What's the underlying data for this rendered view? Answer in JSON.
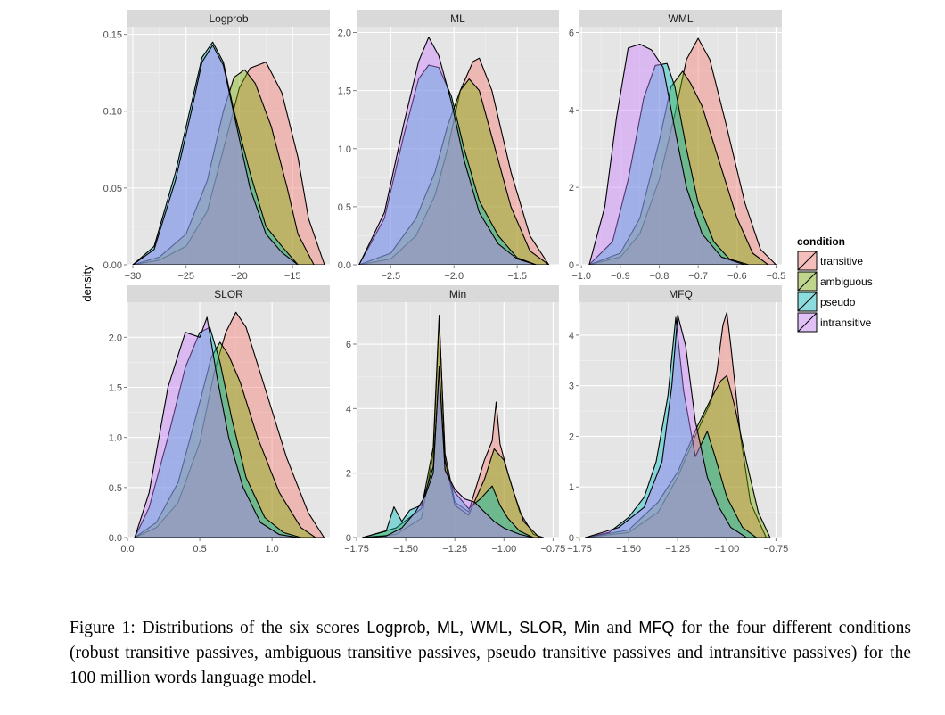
{
  "chart_data": {
    "type": "area",
    "y_label": "density",
    "legend": {
      "title": "condition",
      "position": "right",
      "items": [
        {
          "label": "transitive",
          "color": "#F8766D"
        },
        {
          "label": "ambiguous",
          "color": "#7CAE00"
        },
        {
          "label": "pseudo",
          "color": "#00BFC4"
        },
        {
          "label": "intransitive",
          "color": "#C77CFF"
        }
      ]
    },
    "panels": [
      {
        "title": "Logprob",
        "xlim": [
          -30.5,
          -11.5
        ],
        "ylim": [
          0,
          0.155
        ],
        "x_ticks": [
          -30,
          -25,
          -20,
          -15
        ],
        "x_tick_labels": [
          "−30",
          "−25",
          "−20",
          "−15"
        ],
        "y_ticks": [
          0,
          0.05,
          0.1,
          0.15
        ],
        "y_tick_labels": [
          "0.00",
          "0.05",
          "0.10",
          "0.15"
        ],
        "series": [
          {
            "name": "transitive",
            "x": [
              -30,
              -27.5,
              -25,
              -23,
              -21.5,
              -20,
              -19,
              -17.5,
              -16,
              -14.5,
              -13.5,
              -12
            ],
            "y": [
              0,
              0.003,
              0.012,
              0.035,
              0.075,
              0.115,
              0.128,
              0.132,
              0.112,
              0.07,
              0.03,
              0
            ]
          },
          {
            "name": "ambiguous",
            "x": [
              -30,
              -27.5,
              -25,
              -23,
              -21.5,
              -20.5,
              -19.5,
              -18.5,
              -17,
              -15.5,
              -14.5,
              -13
            ],
            "y": [
              0,
              0.005,
              0.02,
              0.055,
              0.1,
              0.122,
              0.127,
              0.118,
              0.09,
              0.05,
              0.02,
              0
            ]
          },
          {
            "name": "pseudo",
            "x": [
              -30,
              -28,
              -26,
              -24.5,
              -23.5,
              -22.5,
              -21.5,
              -20.5,
              -19,
              -17.5,
              -16,
              -14.5
            ],
            "y": [
              0,
              0.012,
              0.06,
              0.105,
              0.135,
              0.145,
              0.132,
              0.1,
              0.06,
              0.025,
              0.012,
              0
            ]
          },
          {
            "name": "intransitive",
            "x": [
              -30,
              -28,
              -26,
              -24.5,
              -23.5,
              -22.5,
              -21.5,
              -20.5,
              -19,
              -17.5,
              -16,
              -14.5
            ],
            "y": [
              0,
              0.01,
              0.055,
              0.1,
              0.132,
              0.143,
              0.13,
              0.098,
              0.05,
              0.02,
              0.008,
              0
            ]
          }
        ]
      },
      {
        "title": "ML",
        "xlim": [
          -2.77,
          -1.17
        ],
        "ylim": [
          0,
          2.05
        ],
        "x_ticks": [
          -2.5,
          -2.0,
          -1.5
        ],
        "x_tick_labels": [
          "−2.5",
          "−2.0",
          "−1.5"
        ],
        "y_ticks": [
          0,
          0.5,
          1.0,
          1.5,
          2.0
        ],
        "y_tick_labels": [
          "0.0",
          "0.5",
          "1.0",
          "1.5",
          "2.0"
        ],
        "series": [
          {
            "name": "transitive",
            "x": [
              -2.75,
              -2.5,
              -2.3,
              -2.15,
              -2.05,
              -1.95,
              -1.85,
              -1.8,
              -1.7,
              -1.55,
              -1.4,
              -1.25
            ],
            "y": [
              0,
              0.05,
              0.25,
              0.6,
              1.0,
              1.5,
              1.75,
              1.78,
              1.5,
              0.8,
              0.25,
              0
            ]
          },
          {
            "name": "ambiguous",
            "x": [
              -2.75,
              -2.5,
              -2.3,
              -2.15,
              -2.05,
              -1.95,
              -1.88,
              -1.8,
              -1.7,
              -1.55,
              -1.4,
              -1.25
            ],
            "y": [
              0,
              0.1,
              0.4,
              0.8,
              1.2,
              1.5,
              1.6,
              1.5,
              1.1,
              0.5,
              0.12,
              0
            ]
          },
          {
            "name": "pseudo",
            "x": [
              -2.75,
              -2.55,
              -2.4,
              -2.28,
              -2.2,
              -2.12,
              -2.02,
              -1.92,
              -1.8,
              -1.65,
              -1.5,
              -1.35
            ],
            "y": [
              0,
              0.4,
              1.1,
              1.6,
              1.72,
              1.7,
              1.45,
              1.0,
              0.55,
              0.25,
              0.06,
              0
            ]
          },
          {
            "name": "intransitive",
            "x": [
              -2.75,
              -2.55,
              -2.4,
              -2.28,
              -2.2,
              -2.12,
              -2.02,
              -1.92,
              -1.8,
              -1.65,
              -1.5,
              -1.35
            ],
            "y": [
              0,
              0.45,
              1.2,
              1.75,
              1.96,
              1.8,
              1.4,
              0.9,
              0.45,
              0.18,
              0.05,
              0
            ]
          }
        ]
      },
      {
        "title": "WML",
        "xlim": [
          -1.005,
          -0.485
        ],
        "ylim": [
          0,
          6.15
        ],
        "x_ticks": [
          -1.0,
          -0.9,
          -0.8,
          -0.7,
          -0.6,
          -0.5
        ],
        "x_tick_labels": [
          "−1.0",
          "−0.9",
          "−0.8",
          "−0.7",
          "−0.6",
          "−0.5"
        ],
        "y_ticks": [
          0,
          2,
          4,
          6
        ],
        "y_tick_labels": [
          "0",
          "2",
          "4",
          "6"
        ],
        "series": [
          {
            "name": "transitive",
            "x": [
              -0.98,
              -0.9,
              -0.85,
              -0.8,
              -0.76,
              -0.73,
              -0.7,
              -0.67,
              -0.63,
              -0.58,
              -0.54,
              -0.5
            ],
            "y": [
              0,
              0.2,
              0.8,
              2.2,
              3.9,
              5.3,
              5.85,
              5.3,
              3.7,
              1.6,
              0.4,
              0
            ]
          },
          {
            "name": "ambiguous",
            "x": [
              -0.98,
              -0.9,
              -0.85,
              -0.8,
              -0.77,
              -0.74,
              -0.72,
              -0.69,
              -0.65,
              -0.6,
              -0.56,
              -0.52
            ],
            "y": [
              0,
              0.3,
              1.2,
              3.2,
              4.6,
              5.0,
              4.7,
              4.1,
              2.8,
              1.2,
              0.3,
              0
            ]
          },
          {
            "name": "pseudo",
            "x": [
              -0.98,
              -0.92,
              -0.88,
              -0.84,
              -0.81,
              -0.78,
              -0.76,
              -0.73,
              -0.7,
              -0.66,
              -0.62,
              -0.57
            ],
            "y": [
              0,
              0.6,
              2.2,
              4.3,
              5.15,
              5.2,
              4.6,
              3.0,
              1.6,
              0.6,
              0.15,
              0
            ]
          },
          {
            "name": "intransitive",
            "x": [
              -0.98,
              -0.94,
              -0.91,
              -0.88,
              -0.85,
              -0.82,
              -0.79,
              -0.76,
              -0.73,
              -0.69,
              -0.64,
              -0.58
            ],
            "y": [
              0,
              1.5,
              3.8,
              5.6,
              5.7,
              5.55,
              5.1,
              3.5,
              2.0,
              0.8,
              0.2,
              0
            ]
          }
        ]
      },
      {
        "title": "SLOR",
        "xlim": [
          0,
          1.4
        ],
        "ylim": [
          0,
          2.35
        ],
        "x_ticks": [
          0,
          0.5,
          1.0
        ],
        "x_tick_labels": [
          "0.0",
          "0.5",
          "1.0"
        ],
        "y_ticks": [
          0,
          0.5,
          1.0,
          1.5,
          2.0
        ],
        "y_tick_labels": [
          "0.0",
          "0.5",
          "1.0",
          "1.5",
          "2.0"
        ],
        "series": [
          {
            "name": "transitive",
            "x": [
              0.05,
              0.2,
              0.35,
              0.5,
              0.6,
              0.68,
              0.75,
              0.82,
              0.95,
              1.1,
              1.25,
              1.36
            ],
            "y": [
              0,
              0.1,
              0.35,
              0.95,
              1.65,
              2.05,
              2.25,
              2.1,
              1.5,
              0.8,
              0.25,
              0
            ]
          },
          {
            "name": "ambiguous",
            "x": [
              0.05,
              0.2,
              0.35,
              0.5,
              0.58,
              0.64,
              0.7,
              0.78,
              0.9,
              1.05,
              1.2,
              1.3
            ],
            "y": [
              0,
              0.15,
              0.55,
              1.35,
              1.8,
              1.95,
              1.82,
              1.55,
              1.0,
              0.45,
              0.1,
              0
            ]
          },
          {
            "name": "pseudo",
            "x": [
              0.05,
              0.15,
              0.28,
              0.4,
              0.5,
              0.57,
              0.64,
              0.72,
              0.82,
              0.95,
              1.08,
              1.2
            ],
            "y": [
              0,
              0.3,
              1.0,
              1.7,
              2.05,
              2.1,
              1.75,
              1.2,
              0.6,
              0.2,
              0.05,
              0
            ]
          },
          {
            "name": "intransitive",
            "x": [
              0.05,
              0.15,
              0.28,
              0.4,
              0.5,
              0.55,
              0.62,
              0.7,
              0.8,
              0.92,
              1.05,
              1.18
            ],
            "y": [
              0,
              0.45,
              1.5,
              2.05,
              2.0,
              2.2,
              1.6,
              1.0,
              0.5,
              0.15,
              0.03,
              0
            ]
          }
        ]
      },
      {
        "title": "Min",
        "xlim": [
          -1.75,
          -0.72
        ],
        "ylim": [
          0,
          7.3
        ],
        "x_ticks": [
          -1.75,
          -1.5,
          -1.25,
          -1.0,
          -0.75
        ],
        "x_tick_labels": [
          "−1.75",
          "−1.50",
          "−1.25",
          "−1.00",
          "−0.75"
        ],
        "y_ticks": [
          0,
          2,
          4,
          6
        ],
        "y_tick_labels": [
          "0",
          "2",
          "4",
          "6"
        ],
        "series": [
          {
            "name": "transitive",
            "x": [
              -1.72,
              -1.55,
              -1.42,
              -1.36,
              -1.33,
              -1.3,
              -1.25,
              -1.18,
              -1.1,
              -1.06,
              -1.04,
              -1.02,
              -0.98,
              -0.92,
              -0.85,
              -0.8
            ],
            "y": [
              0,
              0.1,
              0.6,
              2.6,
              6.8,
              2.6,
              1.1,
              0.8,
              2.4,
              3.0,
              4.2,
              2.9,
              2.0,
              0.8,
              0.1,
              0
            ]
          },
          {
            "name": "ambiguous",
            "x": [
              -1.72,
              -1.55,
              -1.42,
              -1.36,
              -1.33,
              -1.3,
              -1.25,
              -1.18,
              -1.1,
              -1.05,
              -1.0,
              -0.95,
              -0.9,
              -0.82
            ],
            "y": [
              0,
              0.3,
              0.9,
              2.8,
              6.9,
              2.4,
              1.0,
              0.7,
              1.8,
              2.75,
              2.4,
              1.4,
              0.5,
              0
            ]
          },
          {
            "name": "pseudo",
            "x": [
              -1.72,
              -1.6,
              -1.56,
              -1.52,
              -1.48,
              -1.42,
              -1.36,
              -1.33,
              -1.3,
              -1.25,
              -1.18,
              -1.12,
              -1.06,
              -1.02,
              -0.98,
              -0.92,
              -0.85
            ],
            "y": [
              0,
              0.2,
              0.95,
              0.5,
              0.85,
              1.0,
              2.2,
              5.1,
              2.1,
              1.4,
              0.9,
              1.2,
              1.6,
              1.0,
              0.6,
              0.2,
              0
            ]
          },
          {
            "name": "intransitive",
            "x": [
              -1.72,
              -1.6,
              -1.52,
              -1.45,
              -1.4,
              -1.36,
              -1.33,
              -1.3,
              -1.25,
              -1.2,
              -1.15,
              -1.1,
              -1.05,
              -1.0,
              -0.92,
              -0.85
            ],
            "y": [
              0,
              0.05,
              0.3,
              0.8,
              1.3,
              2.0,
              5.3,
              2.1,
              1.5,
              1.2,
              1.1,
              0.8,
              0.5,
              0.3,
              0.1,
              0
            ]
          }
        ]
      },
      {
        "title": "MFQ",
        "xlim": [
          -1.75,
          -0.72
        ],
        "ylim": [
          0,
          4.65
        ],
        "x_ticks": [
          -1.75,
          -1.5,
          -1.25,
          -1.0,
          -0.75
        ],
        "x_tick_labels": [
          "−1.75",
          "−1.50",
          "−1.25",
          "−1.00",
          "−0.75"
        ],
        "y_ticks": [
          0,
          1,
          2,
          3,
          4
        ],
        "y_tick_labels": [
          "0",
          "1",
          "2",
          "3",
          "4"
        ],
        "series": [
          {
            "name": "transitive",
            "x": [
              -1.72,
              -1.5,
              -1.35,
              -1.25,
              -1.15,
              -1.08,
              -1.05,
              -1.02,
              -1.0,
              -0.98,
              -0.93,
              -0.88,
              -0.8
            ],
            "y": [
              0,
              0.1,
              0.5,
              1.2,
              2.1,
              2.7,
              3.3,
              4.2,
              4.45,
              3.8,
              2.0,
              0.7,
              0
            ]
          },
          {
            "name": "ambiguous",
            "x": [
              -1.72,
              -1.5,
              -1.35,
              -1.25,
              -1.15,
              -1.08,
              -1.03,
              -1.0,
              -0.96,
              -0.9,
              -0.84,
              -0.78
            ],
            "y": [
              0,
              0.15,
              0.7,
              1.3,
              2.2,
              2.75,
              3.1,
              3.2,
              2.6,
              1.5,
              0.5,
              0
            ]
          },
          {
            "name": "pseudo",
            "x": [
              -1.72,
              -1.6,
              -1.5,
              -1.42,
              -1.36,
              -1.3,
              -1.26,
              -1.22,
              -1.16,
              -1.1,
              -1.06,
              -1.0,
              -0.92,
              -0.85
            ],
            "y": [
              0,
              0.1,
              0.4,
              0.8,
              1.5,
              2.8,
              4.35,
              2.9,
              1.6,
              2.1,
              1.6,
              0.8,
              0.2,
              0
            ]
          },
          {
            "name": "intransitive",
            "x": [
              -1.72,
              -1.55,
              -1.42,
              -1.33,
              -1.28,
              -1.25,
              -1.21,
              -1.16,
              -1.1,
              -1.04,
              -0.98,
              -0.9
            ],
            "y": [
              0,
              0.2,
              0.6,
              1.5,
              3.0,
              4.4,
              3.8,
              2.3,
              1.2,
              0.6,
              0.2,
              0
            ]
          }
        ]
      }
    ]
  },
  "caption": {
    "prefix": "Figure 1: Distributions of the six scores ",
    "s1": "Logprob",
    "c1": ", ",
    "s2": "ML",
    "c2": ", ",
    "s3": "WML",
    "c3": ", ",
    "s4": "SLOR",
    "c4": ", ",
    "s5": "Min",
    "c5": " and ",
    "s6": "MFQ",
    "suffix": " for the four different conditions (robust transitive passives, ambiguous transitive passives, pseudo transitive passives and intransitive passives) for the 100 million words language model."
  }
}
